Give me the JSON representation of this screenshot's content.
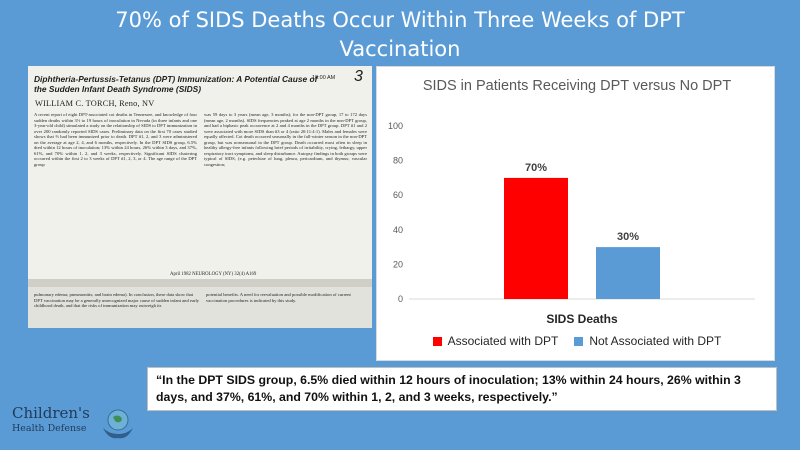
{
  "slide": {
    "title": "70% of SIDS Deaths Occur Within Three Weeks of DPT Vaccination"
  },
  "paper": {
    "number": "3",
    "title": "Diphtheria-Pertussis-Tetanus (DPT) Immunization: A Potential Cause of the Sudden Infant Death Syndrome (SIDS)",
    "time": "10:00 AM",
    "author": "WILLIAM C. TORCH, Reno, NV",
    "col_left": "A recent report of eight DPT-associated cot deaths in Tennessee, and knowledge of four sudden deaths within 3½ to 19 hours of inoculation in Nevada (in three infants and one 3-year-old child) stimulated a study on the relationship of SIDS to DPT immunization in over 200 randomly reported SIDS cases. Preliminary data on the first 70 cases studied shows that ⅔ had been immunized prior to death. DPT #1, 2, and 3 were administered on the average at age 2, 4, and 6 months, respectively. In the DPT SIDS group, 6.5% died within 12 hours of inoculation; 13% within 24 hours, 26% within 3 days, and 37%, 61%, and 70% within 1, 2, and 3 weeks, respectively. Significant SIDS clustering occurred within the first 2 to 3 weeks of DPT #1, 2, 3, or 4. The age range of the DPT group",
    "col_right": "was 59 days to 3 years (mean age, 3 months); for the non-DPT group, 17 to 172 days (mean age, 2 months). SIDS frequencies peaked at age 2 months in the non-DPT group, and had a biphasic peak occurrence at 2 and 4 months in the DPT group. DPT #1 and 2 were associated with more SIDS than #3 or 4 (ratio 20:11:4:1). Males and females were equally affected. Cot death occurred seasonally in the fall-winter season in the non-DPT group, but was nonseasonal in the DPT group. Death occurred most often in sleep in healthy allergy-free infants following brief periods of irritability, crying, lethargy, upper respiratory tract symptoms, and sleep disturbance. Autopsy findings in both groups were typical of SIDS, (e.g. petechiae of lung, pleura, pericardium, and thymus; vascular congestion;",
    "footer": "April 1982   NEUROLOGY (NY) 32(4)   A169",
    "bottom_left": "pulmonary edema; pneumonitis; and brain edema). In conclusion, these data show that DPT vaccination may be a generally unrecognized major cause of sudden infant and early childhood death, and that the risks of immunization may outweigh its",
    "bottom_right": "potential benefits. A need for reevaluation and possible modification of current vaccination procedures is indicated by this study."
  },
  "chart_data": {
    "type": "bar",
    "title": "SIDS in Patients Receiving DPT versus No DPT",
    "categories": [
      "SIDS Deaths"
    ],
    "xlabel": "SIDS Deaths",
    "ylabel": "",
    "ylim": [
      0,
      100
    ],
    "yticks": [
      0,
      20,
      40,
      60,
      80,
      100
    ],
    "grid": false,
    "legend_position": "bottom",
    "series": [
      {
        "name": "Associated with DPT",
        "values": [
          70
        ],
        "label": "70%",
        "color": "#ff0000"
      },
      {
        "name": "Not Associated with DPT",
        "values": [
          30
        ],
        "label": "30%",
        "color": "#5b9bd5"
      }
    ]
  },
  "quote": {
    "text": "“In the DPT SIDS group, 6.5% died within 12 hours of inoculation; 13% within 24 hours, 26% within 3 days, and 37%, 61%, and 70% within 1, 2, and 3 weeks, respectively.”"
  },
  "logo": {
    "line1": "Children's",
    "line2": "Health Defense"
  }
}
